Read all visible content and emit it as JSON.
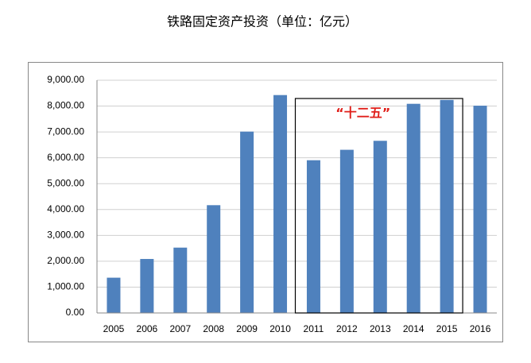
{
  "chart_data": {
    "type": "bar",
    "title": "铁路固定资产投资（单位：亿元）",
    "categories": [
      "2005",
      "2006",
      "2007",
      "2008",
      "2009",
      "2010",
      "2011",
      "2012",
      "2013",
      "2014",
      "2015",
      "2016"
    ],
    "values": [
      1364,
      2088,
      2527,
      4168,
      7013,
      8426,
      5906,
      6310,
      6657,
      8088,
      8238,
      8015
    ],
    "color": "#4f81bd",
    "ylim": [
      0,
      9000
    ],
    "yticks": [
      {
        "value": 0,
        "label": "0.00"
      },
      {
        "value": 1000,
        "label": "1,000.00"
      },
      {
        "value": 2000,
        "label": "2,000.00"
      },
      {
        "value": 3000,
        "label": "3,000.00"
      },
      {
        "value": 4000,
        "label": "4,000.00"
      },
      {
        "value": 5000,
        "label": "5,000.00"
      },
      {
        "value": 6000,
        "label": "6,000.00"
      },
      {
        "value": 7000,
        "label": "7,000.00"
      },
      {
        "value": 8000,
        "label": "8,000.00"
      },
      {
        "value": 9000,
        "label": "9,000.00"
      }
    ],
    "grid": true,
    "annotation": "“十二五”"
  }
}
